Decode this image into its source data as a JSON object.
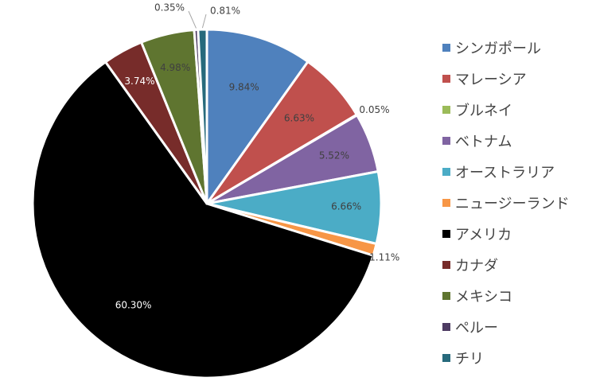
{
  "chart_data": {
    "type": "pie",
    "title": "",
    "legend_position": "right",
    "slices": [
      {
        "label": "シンガポール",
        "value": 9.84,
        "text": "9.84%",
        "color": "#4F81BD"
      },
      {
        "label": "マレーシア",
        "value": 6.63,
        "text": "6.63%",
        "color": "#C0504D"
      },
      {
        "label": "ブルネイ",
        "value": 0.05,
        "text": "0.05%",
        "color": "#9BBB59"
      },
      {
        "label": "ベトナム",
        "value": 5.52,
        "text": "5.52%",
        "color": "#8064A2"
      },
      {
        "label": "オーストラリア",
        "value": 6.66,
        "text": "6.66%",
        "color": "#4BACC6"
      },
      {
        "label": "ニュージーランド",
        "value": 1.11,
        "text": "1.11%",
        "color": "#F79646"
      },
      {
        "label": "アメリカ",
        "value": 60.3,
        "text": "60.30%",
        "color": "#000000"
      },
      {
        "label": "カナダ",
        "value": 3.74,
        "text": "3.74%",
        "color": "#772C2A"
      },
      {
        "label": "メキシコ",
        "value": 4.98,
        "text": "4.98%",
        "color": "#5F7530"
      },
      {
        "label": "ペルー",
        "value": 0.35,
        "text": "0.35%",
        "color": "#4D3B62"
      },
      {
        "label": "チリ",
        "value": 0.81,
        "text": "0.81%",
        "color": "#276A7C"
      }
    ]
  }
}
